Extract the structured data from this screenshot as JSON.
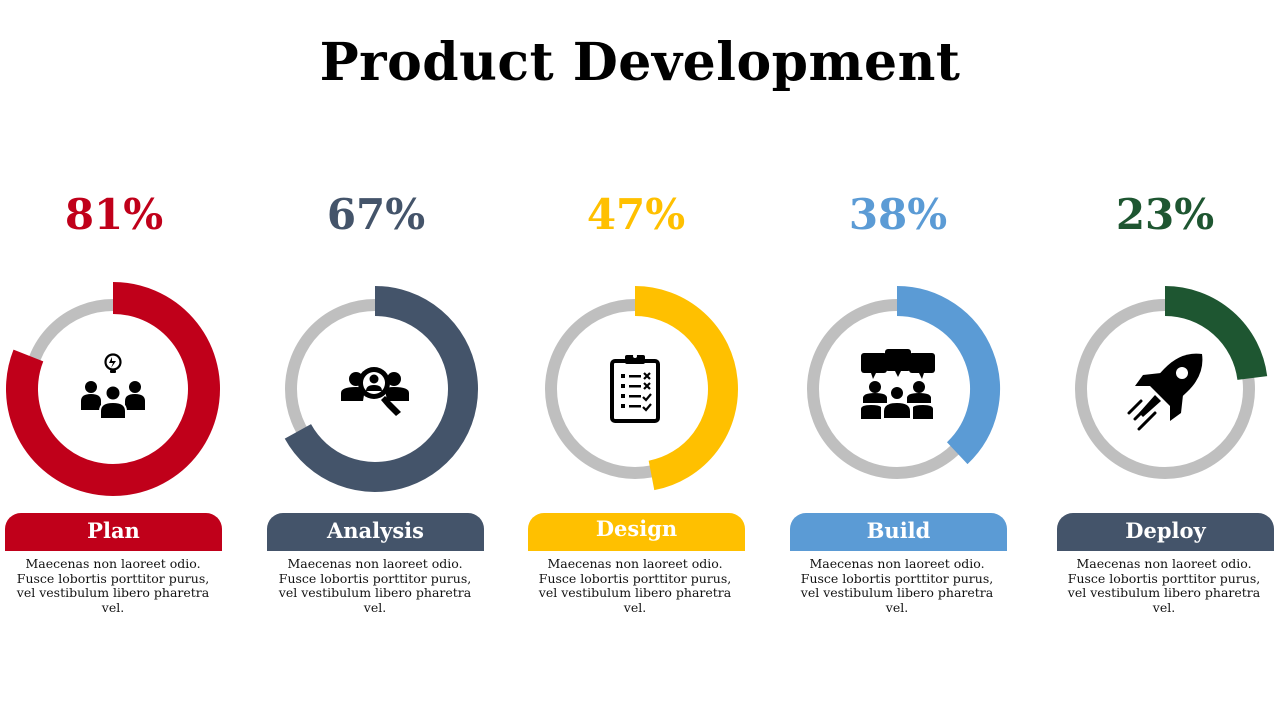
{
  "title": "Product Development",
  "chart_data": {
    "type": "donut",
    "title": "Product Development",
    "categories": [
      "Plan",
      "Analysis",
      "Design",
      "Build",
      "Deploy"
    ],
    "values": [
      81,
      67,
      47,
      38,
      23
    ],
    "value_labels": [
      "81%",
      "67%",
      "47%",
      "38%",
      "23%"
    ],
    "track_color": "#bfbfbf",
    "colors": [
      "#c0001a",
      "#44546a",
      "#ffc000",
      "#5b9bd5",
      "#1e5631"
    ]
  },
  "steps": [
    {
      "label": "Plan",
      "percent_text": "81%",
      "value": 81,
      "color": "#c0001a",
      "label_bg": "#c0001a",
      "icon": "team-idea-icon",
      "description": "Maecenas non laoreet odio. Fusce lobortis porttitor purus, vel vestibulum libero pharetra vel."
    },
    {
      "label": "Analysis",
      "percent_text": "67%",
      "value": 67,
      "color": "#44546a",
      "label_bg": "#44546a",
      "icon": "team-search-icon",
      "description": "Maecenas non laoreet odio. Fusce lobortis porttitor purus, vel vestibulum libero pharetra vel."
    },
    {
      "label": "Design",
      "percent_text": "47%",
      "value": 47,
      "color": "#ffc000",
      "label_bg": "#ffc000",
      "icon": "clipboard-checklist-icon",
      "description": "Maecenas non laoreet odio. Fusce lobortis porttitor purus, vel vestibulum libero pharetra vel."
    },
    {
      "label": "Build",
      "percent_text": "38%",
      "value": 38,
      "color": "#5b9bd5",
      "label_bg": "#5b9bd5",
      "icon": "team-meeting-icon",
      "description": "Maecenas non laoreet odio. Fusce lobortis porttitor purus, vel vestibulum libero pharetra vel."
    },
    {
      "label": "Deploy",
      "percent_text": "23%",
      "value": 23,
      "color": "#1e5631",
      "label_bg": "#44546a",
      "icon": "rocket-icon",
      "description": "Maecenas non laoreet odio. Fusce lobortis porttitor purus, vel vestibulum libero pharetra vel."
    }
  ]
}
